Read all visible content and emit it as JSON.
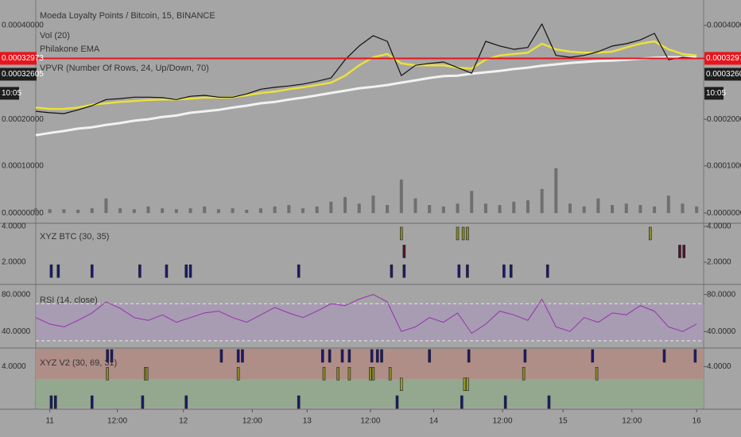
{
  "chart_data": [
    {
      "type": "line",
      "title": "Moeda Loyalty Points / Bitcoin, 15, BINANCE",
      "indicators": [
        "Philakone EMA",
        "VPVR (Number Of Rows, 24, Up/Down, 70)"
      ],
      "xlim": [
        0,
        475
      ],
      "ylim": [
        0.000141,
        0.000454
      ],
      "yticks": [
        {
          "value": 0.0002,
          "label": "0.00020000"
        },
        {
          "value": 0.0004,
          "label": "0.00040000"
        }
      ],
      "last_price": 0.00032973,
      "last_price_color": "#e8141c",
      "annotations": [
        "0.00032605",
        "10:05"
      ],
      "x": [
        0,
        10,
        20,
        30,
        40,
        50,
        60,
        70,
        80,
        90,
        100,
        110,
        120,
        130,
        140,
        150,
        160,
        170,
        180,
        190,
        200,
        210,
        220,
        230,
        240,
        250,
        260,
        270,
        280,
        290,
        300,
        310,
        320,
        330,
        340,
        350,
        360,
        370,
        380,
        390,
        400,
        410,
        420,
        430,
        440,
        450,
        460,
        470
      ],
      "series": [
        {
          "color": "#f2f2f2",
          "width": 3,
          "values": [
            0.000166,
            0.000171,
            0.000175,
            0.00018,
            0.000183,
            0.000188,
            0.000192,
            0.000197,
            0.0002,
            0.000205,
            0.000208,
            0.000214,
            0.000217,
            0.00022,
            0.000225,
            0.000229,
            0.000234,
            0.000237,
            0.000242,
            0.000246,
            0.000251,
            0.000256,
            0.000261,
            0.000266,
            0.000269,
            0.000273,
            0.000278,
            0.000283,
            0.000288,
            0.000292,
            0.000293,
            0.000297,
            0.0003,
            0.000303,
            0.000307,
            0.00031,
            0.000314,
            0.000317,
            0.00032,
            0.000322,
            0.000324,
            0.000325,
            0.000327,
            0.000329,
            0.000331,
            0.000332,
            0.000332,
            0.000332
          ]
        },
        {
          "color": "#ece03c",
          "width": 2.5,
          "values": [
            0.000225,
            0.000222,
            0.000222,
            0.000225,
            0.000231,
            0.000234,
            0.000237,
            0.000239,
            0.000241,
            0.000242,
            0.000242,
            0.000244,
            0.000246,
            0.000246,
            0.000247,
            0.000251,
            0.000256,
            0.000259,
            0.000264,
            0.000268,
            0.000273,
            0.000278,
            0.000293,
            0.000315,
            0.000332,
            0.000339,
            0.000319,
            0.000315,
            0.000315,
            0.000315,
            0.00031,
            0.000308,
            0.000327,
            0.000336,
            0.000339,
            0.000342,
            0.000361,
            0.000349,
            0.000344,
            0.000342,
            0.000342,
            0.000344,
            0.000353,
            0.000361,
            0.000366,
            0.000349,
            0.000339,
            0.000336
          ]
        },
        {
          "color": "#111111",
          "width": 1.2,
          "values": [
            0.000217,
            0.000214,
            0.000212,
            0.00022,
            0.000229,
            0.000242,
            0.000244,
            0.000247,
            0.000247,
            0.000246,
            0.000242,
            0.000249,
            0.000251,
            0.000247,
            0.000247,
            0.000254,
            0.000264,
            0.000268,
            0.000271,
            0.000275,
            0.000281,
            0.000288,
            0.000327,
            0.000356,
            0.000378,
            0.000366,
            0.000293,
            0.000315,
            0.000319,
            0.000322,
            0.00031,
            0.000298,
            0.000366,
            0.000356,
            0.000349,
            0.000353,
            0.000403,
            0.000336,
            0.000332,
            0.000336,
            0.000344,
            0.000356,
            0.000361,
            0.000369,
            0.000383,
            0.000327,
            0.000332,
            0.00033
          ]
        }
      ]
    },
    {
      "type": "bar",
      "title": "Vol (20)",
      "color": "#6f6f6f",
      "xlim": [
        0,
        475
      ],
      "ylim": [
        -2e-05,
        0.00014
      ],
      "yticks": [
        {
          "value": 0,
          "label": "0.00000000"
        },
        {
          "value": 0.0001,
          "label": "0.00010000"
        }
      ],
      "x": [
        0,
        10,
        20,
        30,
        40,
        50,
        60,
        70,
        80,
        90,
        100,
        110,
        120,
        130,
        140,
        150,
        160,
        170,
        180,
        190,
        200,
        210,
        220,
        230,
        240,
        250,
        260,
        270,
        280,
        290,
        300,
        310,
        320,
        330,
        340,
        350,
        360,
        370,
        380,
        390,
        400,
        410,
        420,
        430,
        440,
        450,
        460,
        470
      ],
      "values": [
        1e-05,
        8e-06,
        8e-06,
        7e-06,
        1e-05,
        3.1e-05,
        1e-05,
        8e-06,
        1.4e-05,
        1e-05,
        8e-06,
        1e-05,
        1.4e-05,
        8e-06,
        1e-05,
        7e-06,
        1e-05,
        1.4e-05,
        1.7e-05,
        1e-05,
        1.4e-05,
        2.4e-05,
        3.4e-05,
        2e-05,
        3.7e-05,
        1.7e-05,
        7.1e-05,
        3.1e-05,
        1.7e-05,
        1.4e-05,
        2e-05,
        4.7e-05,
        2e-05,
        1.7e-05,
        2.4e-05,
        2.7e-05,
        5.1e-05,
        9.5e-05,
        2e-05,
        1.4e-05,
        3.1e-05,
        1.7e-05,
        2e-05,
        1.7e-05,
        1.4e-05,
        3.7e-05,
        2e-05,
        1.4e-05
      ]
    },
    {
      "type": "event",
      "title": "XYZ BTC (30, 35)",
      "xlim": [
        0,
        475
      ],
      "ylim": [
        0.8,
        4.13
      ],
      "yticks": [
        {
          "value": 2,
          "label": "2.0000"
        },
        {
          "value": 4,
          "label": "4.0000"
        }
      ],
      "series": [
        {
          "color": "#1a1a6e",
          "x": [
            11,
            16,
            40,
            74,
            93,
            107,
            110,
            187,
            253,
            262,
            301,
            307,
            333,
            338,
            364
          ],
          "values": [
            1.5,
            1.5,
            1.5,
            1.5,
            1.5,
            1.5,
            1.5,
            1.5,
            1.5,
            1.5,
            1.5,
            1.5,
            1.5,
            1.5,
            1.5
          ]
        },
        {
          "color": "#8a8a2a",
          "x": [
            260,
            300,
            304,
            307,
            437
          ],
          "values": [
            3.6,
            3.6,
            3.6,
            3.6,
            3.6
          ]
        },
        {
          "color": "#5a1030",
          "x": [
            262,
            458,
            461
          ],
          "values": [
            2.6,
            2.6,
            2.6
          ]
        }
      ]
    },
    {
      "type": "line",
      "title": "RSI (14, close)",
      "xlim": [
        0,
        475
      ],
      "ylim": [
        23,
        90
      ],
      "bands": [
        30,
        70
      ],
      "band_color": "#a898b8",
      "yticks": [
        {
          "value": 40,
          "label": "40.0000"
        },
        {
          "value": 80,
          "label": "80.0000"
        }
      ],
      "x": [
        0,
        10,
        20,
        30,
        40,
        50,
        60,
        70,
        80,
        90,
        100,
        110,
        120,
        130,
        140,
        150,
        160,
        170,
        180,
        190,
        200,
        210,
        220,
        230,
        240,
        250,
        260,
        270,
        280,
        290,
        300,
        310,
        320,
        330,
        340,
        350,
        360,
        370,
        380,
        390,
        400,
        410,
        420,
        430,
        440,
        450,
        460,
        470
      ],
      "series": [
        {
          "color": "#9a2fb0",
          "width": 1,
          "values": [
            55,
            48,
            45,
            52,
            60,
            72,
            65,
            55,
            52,
            58,
            50,
            55,
            60,
            62,
            55,
            50,
            58,
            66,
            60,
            55,
            62,
            70,
            68,
            75,
            80,
            72,
            40,
            45,
            55,
            50,
            60,
            38,
            48,
            62,
            58,
            52,
            75,
            45,
            40,
            55,
            50,
            60,
            58,
            68,
            62,
            45,
            40,
            48
          ]
        }
      ]
    },
    {
      "type": "event",
      "title": "XYZ V2 (30, 69, 31)",
      "xlim": [
        0,
        475
      ],
      "ylim": [
        1.6,
        5
      ],
      "zones": [
        {
          "from": 3.3,
          "to": 5,
          "color": "#b08e88"
        },
        {
          "from": 1.7,
          "to": 3.3,
          "color": "#93a88f"
        }
      ],
      "yticks": [
        {
          "value": 4,
          "label": "4.0000"
        }
      ],
      "xticks": [
        {
          "value": 10,
          "label": "11"
        },
        {
          "value": 58,
          "label": "12:00"
        },
        {
          "value": 105,
          "label": "12"
        },
        {
          "value": 154,
          "label": "12:00"
        },
        {
          "value": 193,
          "label": "13"
        },
        {
          "value": 238,
          "label": "12:00"
        },
        {
          "value": 283,
          "label": "14"
        },
        {
          "value": 332,
          "label": "12:00"
        },
        {
          "value": 375,
          "label": "15"
        },
        {
          "value": 424,
          "label": "12:00"
        },
        {
          "value": 470,
          "label": "16"
        }
      ],
      "series": [
        {
          "color": "#1a1a6e",
          "x": [
            51,
            54,
            132,
            144,
            147,
            204,
            209,
            218,
            223,
            239,
            243,
            246,
            280,
            308,
            348,
            396,
            447,
            469
          ],
          "values": [
            4.6,
            4.6,
            4.6,
            4.6,
            4.6,
            4.6,
            4.6,
            4.6,
            4.6,
            4.6,
            4.6,
            4.6,
            4.6,
            4.6,
            4.6,
            4.6,
            4.6,
            4.6
          ]
        },
        {
          "color": "#8a8a2a",
          "x": [
            51,
            78,
            79,
            144,
            205,
            215,
            223,
            238,
            240,
            252,
            347,
            399
          ],
          "values": [
            3.6,
            3.6,
            3.6,
            3.6,
            3.6,
            3.6,
            3.6,
            3.6,
            3.6,
            3.6,
            3.6,
            3.6
          ]
        },
        {
          "color": "#9a9a30",
          "x": [
            260,
            305,
            307
          ],
          "values": [
            3.0,
            3.0,
            3.0
          ]
        },
        {
          "color": "#1a1a6e",
          "x": [
            11,
            14,
            40,
            76,
            107,
            187,
            257,
            303,
            334,
            365
          ],
          "values": [
            2.0,
            2.0,
            2.0,
            2.0,
            2.0,
            2.0,
            2.0,
            2.0,
            2.0,
            2.0
          ]
        }
      ]
    }
  ]
}
